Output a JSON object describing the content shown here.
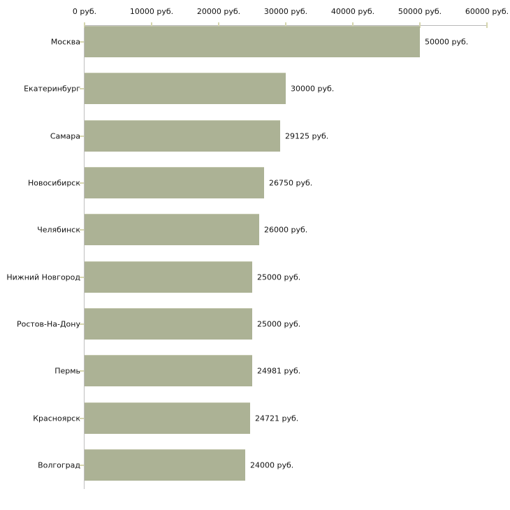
{
  "chart_data": {
    "type": "bar",
    "orientation": "horizontal",
    "title": "",
    "categories": [
      "Москва",
      "Екатеринбург",
      "Самара",
      "Новосибирск",
      "Челябинск",
      "Нижний Новгород",
      "Ростов-На-Дону",
      "Пермь",
      "Красноярск",
      "Волгоград"
    ],
    "values": [
      50000,
      30000,
      29125,
      26750,
      26000,
      25000,
      25000,
      24981,
      24721,
      24000
    ],
    "value_labels": [
      "50000 руб.",
      "30000 руб.",
      "29125 руб.",
      "26750 руб.",
      "26000 руб.",
      "25000 руб.",
      "25000 руб.",
      "24981 руб.",
      "24721 руб.",
      "24000 руб."
    ],
    "x_axis": {
      "tick_values": [
        0,
        10000,
        20000,
        30000,
        40000,
        50000,
        60000
      ],
      "tick_labels": [
        "0 руб.",
        "10000 руб.",
        "20000 руб.",
        "30000 руб.",
        "40000 руб.",
        "50000 руб.",
        "60000 руб."
      ],
      "position": "top"
    },
    "xlim": [
      0,
      60000
    ],
    "unit": "руб.",
    "grid": false,
    "legend": false,
    "colors": {
      "bar_fill": "#acb295",
      "bar_edge": "#c5c9b0",
      "axis_line": "#b9b9b9",
      "tick_mark": "#d6d6ae",
      "text": "#111111",
      "background": "#ffffff"
    }
  }
}
